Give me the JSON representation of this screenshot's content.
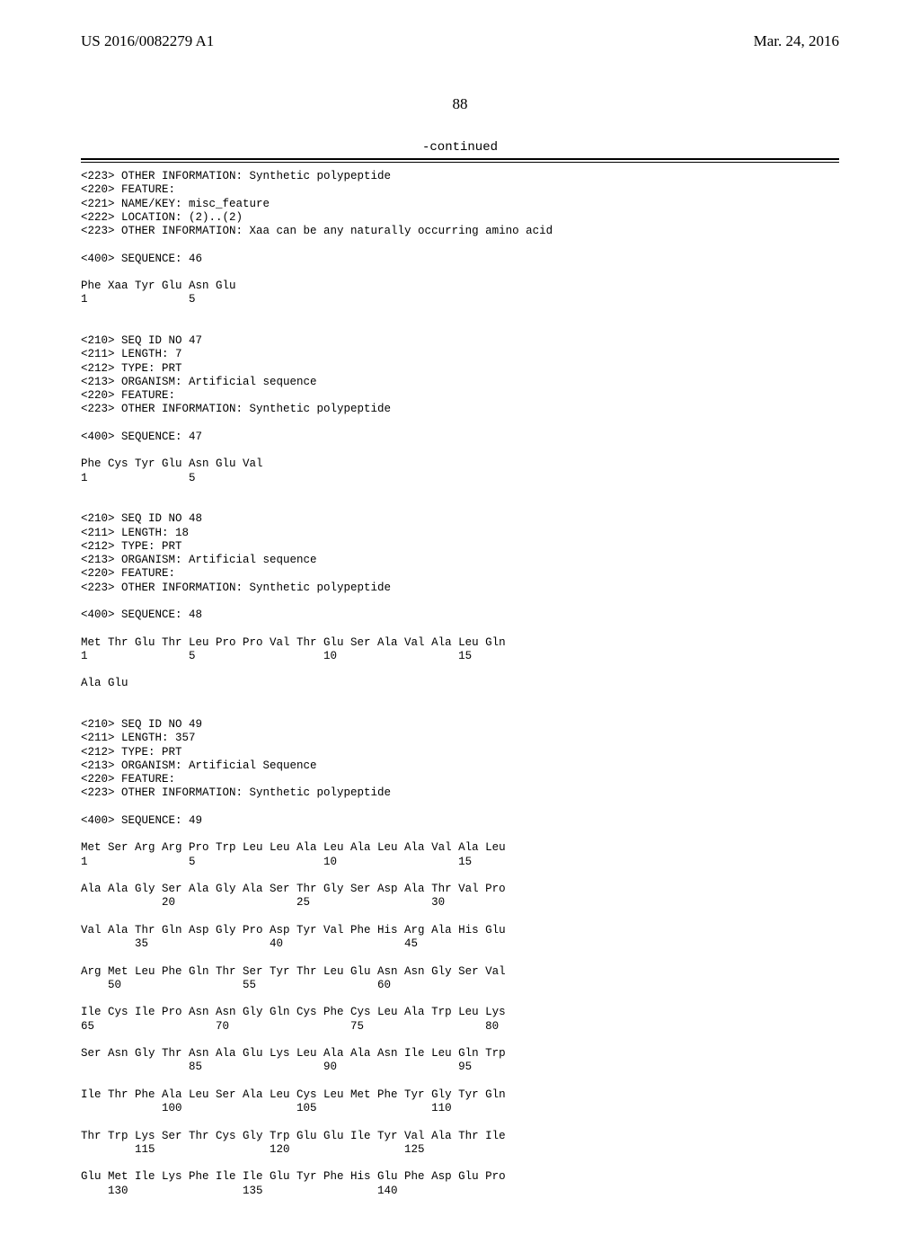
{
  "header": {
    "left": "US 2016/0082279 A1",
    "right": "Mar. 24, 2016"
  },
  "page_number": "88",
  "continued_label": "-continued",
  "listing_lines": [
    "<223> OTHER INFORMATION: Synthetic polypeptide",
    "<220> FEATURE:",
    "<221> NAME/KEY: misc_feature",
    "<222> LOCATION: (2)..(2)",
    "<223> OTHER INFORMATION: Xaa can be any naturally occurring amino acid",
    "",
    "<400> SEQUENCE: 46",
    "",
    "Phe Xaa Tyr Glu Asn Glu",
    "1               5",
    "",
    "",
    "<210> SEQ ID NO 47",
    "<211> LENGTH: 7",
    "<212> TYPE: PRT",
    "<213> ORGANISM: Artificial sequence",
    "<220> FEATURE:",
    "<223> OTHER INFORMATION: Synthetic polypeptide",
    "",
    "<400> SEQUENCE: 47",
    "",
    "Phe Cys Tyr Glu Asn Glu Val",
    "1               5",
    "",
    "",
    "<210> SEQ ID NO 48",
    "<211> LENGTH: 18",
    "<212> TYPE: PRT",
    "<213> ORGANISM: Artificial sequence",
    "<220> FEATURE:",
    "<223> OTHER INFORMATION: Synthetic polypeptide",
    "",
    "<400> SEQUENCE: 48",
    "",
    "Met Thr Glu Thr Leu Pro Pro Val Thr Glu Ser Ala Val Ala Leu Gln",
    "1               5                   10                  15",
    "",
    "Ala Glu",
    "",
    "",
    "<210> SEQ ID NO 49",
    "<211> LENGTH: 357",
    "<212> TYPE: PRT",
    "<213> ORGANISM: Artificial Sequence",
    "<220> FEATURE:",
    "<223> OTHER INFORMATION: Synthetic polypeptide",
    "",
    "<400> SEQUENCE: 49",
    "",
    "Met Ser Arg Arg Pro Trp Leu Leu Ala Leu Ala Leu Ala Val Ala Leu",
    "1               5                   10                  15",
    "",
    "Ala Ala Gly Ser Ala Gly Ala Ser Thr Gly Ser Asp Ala Thr Val Pro",
    "            20                  25                  30",
    "",
    "Val Ala Thr Gln Asp Gly Pro Asp Tyr Val Phe His Arg Ala His Glu",
    "        35                  40                  45",
    "",
    "Arg Met Leu Phe Gln Thr Ser Tyr Thr Leu Glu Asn Asn Gly Ser Val",
    "    50                  55                  60",
    "",
    "Ile Cys Ile Pro Asn Asn Gly Gln Cys Phe Cys Leu Ala Trp Leu Lys",
    "65                  70                  75                  80",
    "",
    "Ser Asn Gly Thr Asn Ala Glu Lys Leu Ala Ala Asn Ile Leu Gln Trp",
    "                85                  90                  95",
    "",
    "Ile Thr Phe Ala Leu Ser Ala Leu Cys Leu Met Phe Tyr Gly Tyr Gln",
    "            100                 105                 110",
    "",
    "Thr Trp Lys Ser Thr Cys Gly Trp Glu Glu Ile Tyr Val Ala Thr Ile",
    "        115                 120                 125",
    "",
    "Glu Met Ile Lys Phe Ile Ile Glu Tyr Phe His Glu Phe Asp Glu Pro",
    "    130                 135                 140"
  ]
}
